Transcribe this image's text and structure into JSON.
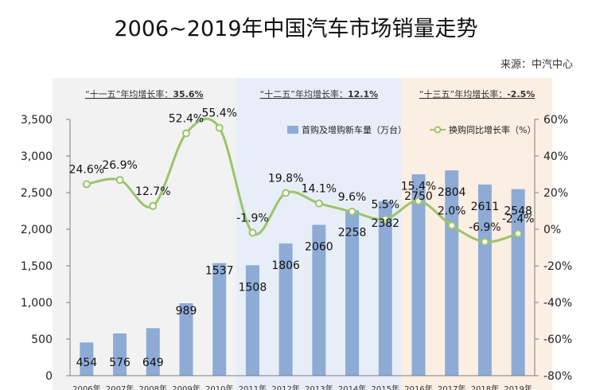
{
  "chart_data": {
    "type": "bar+line",
    "title": "2006~2019年中国汽车市场销量走势",
    "source": "来源：中汽中心",
    "categories": [
      "2006年",
      "2007年",
      "2008年",
      "2009年",
      "2010年",
      "2011年",
      "2012年",
      "2013年",
      "2014年",
      "2015年",
      "2016年",
      "2017年",
      "2018年",
      "2019年"
    ],
    "series": [
      {
        "name": "首购及增购新车量（万台）",
        "type": "bar",
        "axis": "left",
        "color": "#8eabd6",
        "values": [
          454,
          576,
          649,
          989,
          1537,
          1508,
          1806,
          2060,
          2258,
          2382,
          2750,
          2804,
          2611,
          2548
        ],
        "labels": [
          "454",
          "576",
          "649",
          "989",
          "1537",
          "1508",
          "1806",
          "2060",
          "2258",
          "2382",
          "2750",
          "2804",
          "2611",
          "2548"
        ]
      },
      {
        "name": "换购同比增长率（%）",
        "type": "line",
        "axis": "right",
        "color": "#9dc36b",
        "values": [
          24.6,
          26.9,
          12.7,
          52.4,
          55.4,
          -1.9,
          19.8,
          14.1,
          9.6,
          5.5,
          15.4,
          2.0,
          -6.9,
          -2.4
        ],
        "labels": [
          "24.6%",
          "26.9%",
          "12.7%",
          "52.4%",
          "55.4%",
          "-1.9%",
          "19.8%",
          "14.1%",
          "9.6%",
          "5.5%",
          "15.4%",
          "2.0%",
          "-6.9%",
          "-2.4%"
        ]
      }
    ],
    "y_left": {
      "min": 0,
      "max": 3500,
      "ticks": [
        "0",
        "500",
        "1,000",
        "1,500",
        "2,000",
        "2,500",
        "3,000",
        "3,500"
      ]
    },
    "y_right": {
      "min": -80,
      "max": 60,
      "ticks": [
        "-80%",
        "-60%",
        "-40%",
        "-20%",
        "0%",
        "20%",
        "40%",
        "60%"
      ]
    },
    "periods": [
      {
        "label": "“十一五”年均增长率：",
        "rate": "35.6%",
        "from": 0,
        "to": 4,
        "color": "#f2f2f2"
      },
      {
        "label": "“十二五”年均增长率：",
        "rate": "12.1%",
        "from": 5,
        "to": 9,
        "color": "#e8eef7"
      },
      {
        "label": "“十三五”年均增长率：",
        "rate": "-2.5%",
        "from": 10,
        "to": 13,
        "color": "#fbeee3"
      }
    ],
    "legend_position": "top-right",
    "grid": false
  }
}
